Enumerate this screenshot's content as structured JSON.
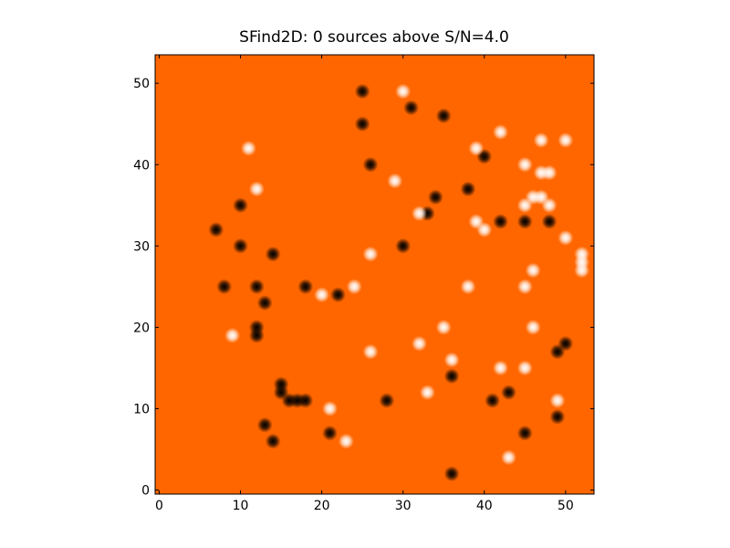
{
  "chart_data": {
    "type": "image",
    "title": "SFind2D: 0 sources above S/N=4.0",
    "background": "#ff6600",
    "xlim": [
      -0.5,
      53.5
    ],
    "ylim": [
      -0.5,
      53.5
    ],
    "xticks": [
      0,
      10,
      20,
      30,
      40,
      50
    ],
    "yticks": [
      0,
      10,
      20,
      30,
      40,
      50
    ],
    "series": [
      {
        "color": "#000000",
        "x": [
          25,
          31,
          35,
          25,
          40,
          26,
          38,
          34,
          10,
          33,
          7,
          42,
          45,
          48,
          10,
          30,
          14,
          8,
          12,
          18,
          22,
          13,
          12,
          12,
          49,
          50,
          36,
          15,
          15,
          16,
          17,
          18,
          28,
          41,
          43,
          49,
          13,
          21,
          45,
          14,
          36
        ],
        "y": [
          49,
          47,
          46,
          45,
          41,
          40,
          37,
          36,
          35,
          34,
          32,
          33,
          33,
          33,
          30,
          30,
          29,
          25,
          25,
          25,
          24,
          23,
          20,
          19,
          17,
          18,
          14,
          13,
          12,
          11,
          11,
          11,
          11,
          11,
          12,
          9,
          8,
          7,
          7,
          6,
          2
        ]
      },
      {
        "color": "#ffffff",
        "x": [
          30,
          42,
          11,
          39,
          47,
          50,
          45,
          47,
          48,
          12,
          29,
          46,
          47,
          45,
          48,
          32,
          39,
          40,
          50,
          52,
          52,
          52,
          26,
          46,
          24,
          20,
          38,
          45,
          9,
          35,
          46,
          32,
          26,
          36,
          42,
          45,
          33,
          49,
          21,
          23,
          43
        ],
        "y": [
          49,
          44,
          42,
          42,
          43,
          43,
          40,
          39,
          39,
          37,
          38,
          36,
          36,
          35,
          35,
          34,
          33,
          32,
          31,
          29,
          28,
          27,
          29,
          27,
          25,
          24,
          25,
          25,
          19,
          20,
          20,
          18,
          17,
          16,
          15,
          15,
          12,
          11,
          10,
          6,
          4
        ]
      }
    ]
  }
}
